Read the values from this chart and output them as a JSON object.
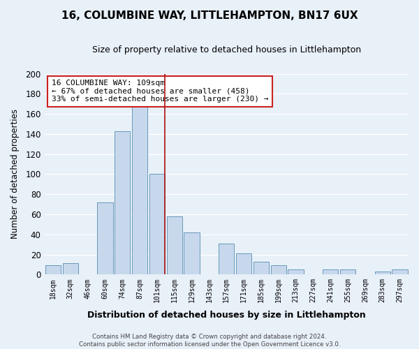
{
  "title": "16, COLUMBINE WAY, LITTLEHAMPTON, BN17 6UX",
  "subtitle": "Size of property relative to detached houses in Littlehampton",
  "xlabel": "Distribution of detached houses by size in Littlehampton",
  "ylabel": "Number of detached properties",
  "bar_labels": [
    "18sqm",
    "32sqm",
    "46sqm",
    "60sqm",
    "74sqm",
    "87sqm",
    "101sqm",
    "115sqm",
    "129sqm",
    "143sqm",
    "157sqm",
    "171sqm",
    "185sqm",
    "199sqm",
    "213sqm",
    "227sqm",
    "241sqm",
    "255sqm",
    "269sqm",
    "283sqm",
    "297sqm"
  ],
  "bar_values": [
    9,
    11,
    0,
    72,
    143,
    168,
    100,
    58,
    42,
    0,
    31,
    21,
    13,
    9,
    5,
    0,
    5,
    5,
    0,
    3,
    5
  ],
  "bar_color": "#c8d8ec",
  "bar_edge_color": "#6699bb",
  "highlight_bar_index": 6,
  "vline_color": "#aa1111",
  "ylim": [
    0,
    200
  ],
  "yticks": [
    0,
    20,
    40,
    60,
    80,
    100,
    120,
    140,
    160,
    180,
    200
  ],
  "annotation_box_text": "16 COLUMBINE WAY: 109sqm\n← 67% of detached houses are smaller (458)\n33% of semi-detached houses are larger (230) →",
  "annotation_box_color": "#ffffff",
  "annotation_box_edge": "#cc2222",
  "background_color": "#e8f0f8",
  "grid_color": "#ffffff",
  "footer_line1": "Contains HM Land Registry data © Crown copyright and database right 2024.",
  "footer_line2": "Contains public sector information licensed under the Open Government Licence v3.0."
}
